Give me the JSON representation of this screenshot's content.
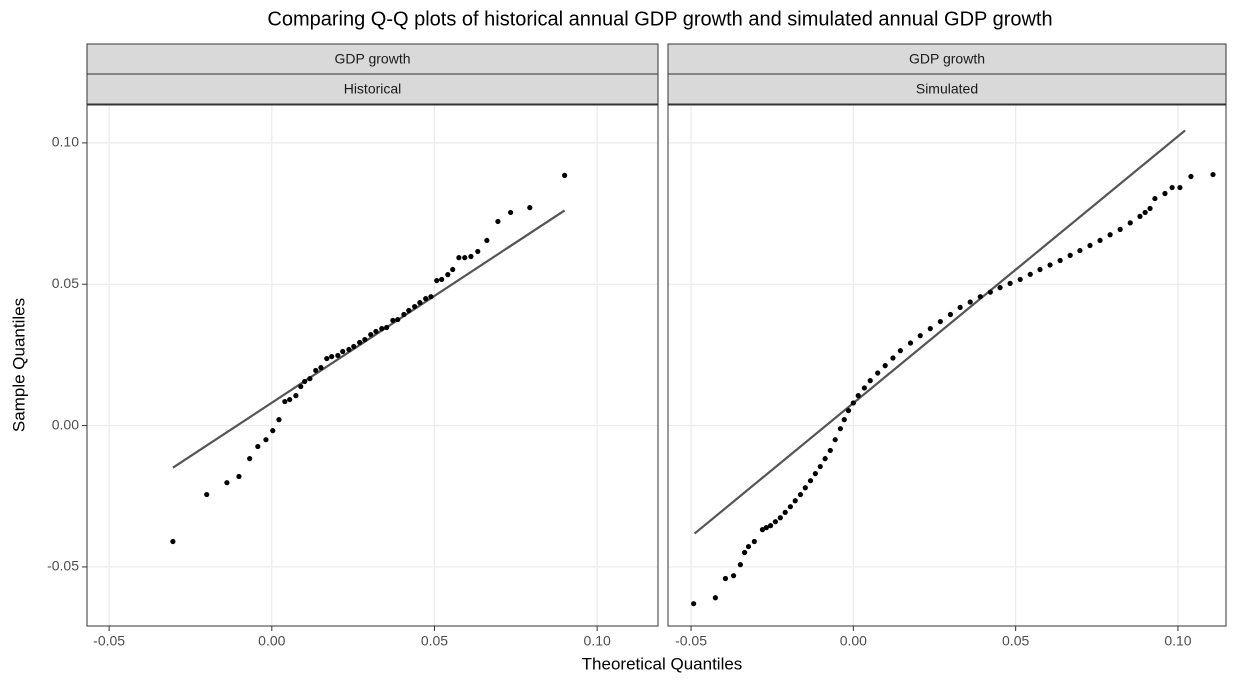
{
  "chart_data": {
    "type": "scatter",
    "title": "Comparing Q-Q plots of historical annual GDP growth and simulated annual GDP growth",
    "x_label": "Theoretical Quantiles",
    "y_label": "Sample Quantiles",
    "ylim": [
      -0.0709,
      0.1134
    ],
    "yticks": [
      {
        "value": -0.05,
        "label": "-0.05"
      },
      {
        "value": 0,
        "label": "0.00"
      },
      0.05,
      {
        "value": 0.1,
        "label": "0.10"
      }
    ],
    "grid": true,
    "panels": [
      {
        "strips": [
          "GDP growth",
          "Historical"
        ],
        "xlim": [
          -0.0568,
          0.1187
        ],
        "xticks": [
          {
            "value": -0.05,
            "label": "-0.05"
          },
          {
            "value": 0,
            "label": "0.00"
          },
          0.05,
          {
            "value": 0.1,
            "label": "0.10"
          }
        ],
        "series": [
          {
            "color": "#000000",
            "x": [
              -0.0304,
              -0.02,
              -0.0138,
              -0.0101,
              -0.0068,
              -0.0043,
              -0.0018,
              0.0003,
              0.0022,
              0.004,
              0.0055,
              0.0074,
              0.0089,
              0.0101,
              0.0117,
              0.0135,
              0.0151,
              0.0169,
              0.0184,
              0.0203,
              0.0218,
              0.0237,
              0.0252,
              0.027,
              0.0286,
              0.0304,
              0.032,
              0.0338,
              0.0353,
              0.0372,
              0.0387,
              0.0406,
              0.0421,
              0.0439,
              0.0455,
              0.0473,
              0.0489,
              0.0507,
              0.0522,
              0.0541,
              0.0556,
              0.0575,
              0.0593,
              0.0612,
              0.0633,
              0.0661,
              0.0695,
              0.0734,
              0.0793,
              0.09
            ],
            "values": [
              -0.041,
              -0.0244,
              -0.0202,
              -0.018,
              -0.0117,
              -0.0074,
              -0.005,
              -0.0018,
              0.0021,
              0.0085,
              0.0092,
              0.0106,
              0.0138,
              0.0156,
              0.0166,
              0.0195,
              0.0205,
              0.0237,
              0.0244,
              0.0248,
              0.0262,
              0.0269,
              0.028,
              0.0294,
              0.0304,
              0.0322,
              0.0333,
              0.0343,
              0.0347,
              0.0372,
              0.0375,
              0.0393,
              0.0407,
              0.0421,
              0.0435,
              0.0449,
              0.0456,
              0.0513,
              0.0517,
              0.0534,
              0.0552,
              0.0594,
              0.0594,
              0.0598,
              0.0616,
              0.0655,
              0.0722,
              0.0754,
              0.0771,
              0.0885
            ]
          }
        ],
        "reference_line": {
          "color": "#555555",
          "x": [
            -0.0304,
            0.09
          ],
          "values": [
            -0.0149,
            0.0761
          ]
        }
      },
      {
        "strips": [
          "GDP growth",
          "Simulated"
        ],
        "xlim": [
          -0.0571,
          0.1148
        ],
        "xticks": [
          {
            "value": -0.05,
            "label": "-0.05"
          },
          {
            "value": 0,
            "label": "0.00"
          },
          0.05,
          {
            "value": 0.1,
            "label": "0.10"
          }
        ],
        "series": [
          {
            "color": "#000000",
            "x": [
              -0.0492,
              -0.0425,
              -0.0394,
              -0.0369,
              -0.0348,
              -0.0335,
              -0.0323,
              -0.0305,
              -0.028,
              -0.0268,
              -0.0255,
              -0.024,
              -0.0225,
              -0.021,
              -0.0194,
              -0.0179,
              -0.0163,
              -0.0148,
              -0.0132,
              -0.0117,
              -0.0102,
              -0.0087,
              -0.0071,
              -0.0056,
              -0.004,
              -0.0028,
              -0.0015,
              0.0,
              0.0015,
              0.0034,
              0.0052,
              0.0075,
              0.0098,
              0.0122,
              0.0145,
              0.0176,
              0.0206,
              0.0237,
              0.0268,
              0.0299,
              0.0329,
              0.036,
              0.0391,
              0.0422,
              0.0452,
              0.0483,
              0.0514,
              0.0545,
              0.0575,
              0.0606,
              0.0637,
              0.0668,
              0.0698,
              0.0729,
              0.076,
              0.0791,
              0.0822,
              0.0853,
              0.0883,
              0.0899,
              0.0914,
              0.0929,
              0.096,
              0.0982,
              0.1006,
              0.104,
              0.1108
            ],
            "values": [
              -0.063,
              -0.0609,
              -0.0541,
              -0.0531,
              -0.0492,
              -0.0449,
              -0.0428,
              -0.041,
              -0.0368,
              -0.0361,
              -0.0354,
              -0.034,
              -0.0326,
              -0.0307,
              -0.0287,
              -0.0266,
              -0.0244,
              -0.022,
              -0.0195,
              -0.017,
              -0.0145,
              -0.0117,
              -0.0088,
              -0.005,
              -0.0011,
              0.0021,
              0.0053,
              0.008,
              0.0106,
              0.0133,
              0.0159,
              0.0186,
              0.0212,
              0.0239,
              0.0265,
              0.0292,
              0.0318,
              0.0343,
              0.0368,
              0.0393,
              0.0418,
              0.0437,
              0.0456,
              0.0472,
              0.0488,
              0.0503,
              0.0517,
              0.0535,
              0.0552,
              0.0568,
              0.0584,
              0.0602,
              0.0619,
              0.0637,
              0.0655,
              0.0675,
              0.0694,
              0.0717,
              0.074,
              0.0754,
              0.0768,
              0.0803,
              0.0821,
              0.0842,
              0.0842,
              0.0881,
              0.0888
            ]
          }
        ],
        "reference_line": {
          "color": "#555555",
          "x": [
            -0.0489,
            0.1022
          ],
          "values": [
            -0.0382,
            0.1044
          ]
        }
      }
    ]
  }
}
